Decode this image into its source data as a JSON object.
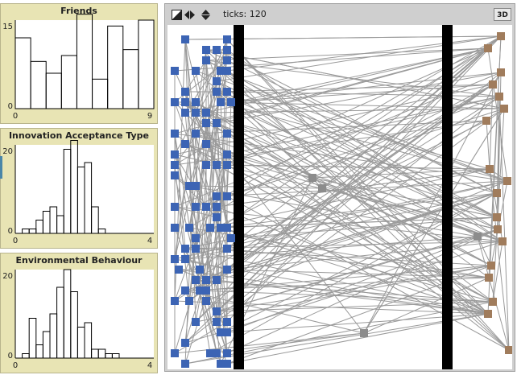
{
  "plots": [
    {
      "title": "Friends",
      "x_min": "0",
      "x_max": "9",
      "y_min": "0",
      "y_max": "15",
      "bar_color": "#000000",
      "chart_data": {
        "type": "bar",
        "title": "Friends",
        "xlim": [
          0,
          9
        ],
        "ylim": [
          0,
          15
        ],
        "bin_width": 1,
        "values": [
          12,
          8,
          6,
          9,
          16,
          5,
          14,
          10,
          15
        ]
      }
    },
    {
      "title": "Innovation Acceptance Type",
      "x_min": "0",
      "x_max": "4",
      "y_min": "0",
      "y_max": "20",
      "bar_color": "#000000",
      "chart_data": {
        "type": "bar",
        "title": "Innovation Acceptance Type",
        "xlim": [
          0,
          4
        ],
        "ylim": [
          0,
          20
        ],
        "bin_width": 0.2,
        "values": [
          0,
          1,
          1,
          3,
          5,
          6,
          4,
          19,
          21,
          15,
          16,
          6,
          1,
          0,
          0,
          0,
          0,
          0,
          0,
          0
        ]
      }
    },
    {
      "title": "Environmental Behaviour",
      "x_min": "0",
      "x_max": "4",
      "y_min": "0",
      "y_max": "20",
      "bar_color": "#000000",
      "chart_data": {
        "type": "bar",
        "title": "Environmental Behaviour",
        "xlim": [
          0,
          4
        ],
        "ylim": [
          0,
          20
        ],
        "bin_width": 0.2,
        "values": [
          0,
          1,
          9,
          3,
          6,
          10,
          16,
          20,
          15,
          7,
          8,
          2,
          2,
          1,
          1,
          0,
          0,
          0,
          0,
          0
        ]
      }
    }
  ],
  "world": {
    "ticks_label": "ticks: 120",
    "three_d_label": "3D",
    "blue_color": "#3c64b4",
    "brown_color": "#a07c5c",
    "gray_color": "#8c8c8c",
    "barrier_color": "#000000",
    "link_color": "#9a9a9a",
    "icons": [
      "speed-slow-icon",
      "speed-arrows-icon",
      "zoom-arrows-icon"
    ]
  }
}
